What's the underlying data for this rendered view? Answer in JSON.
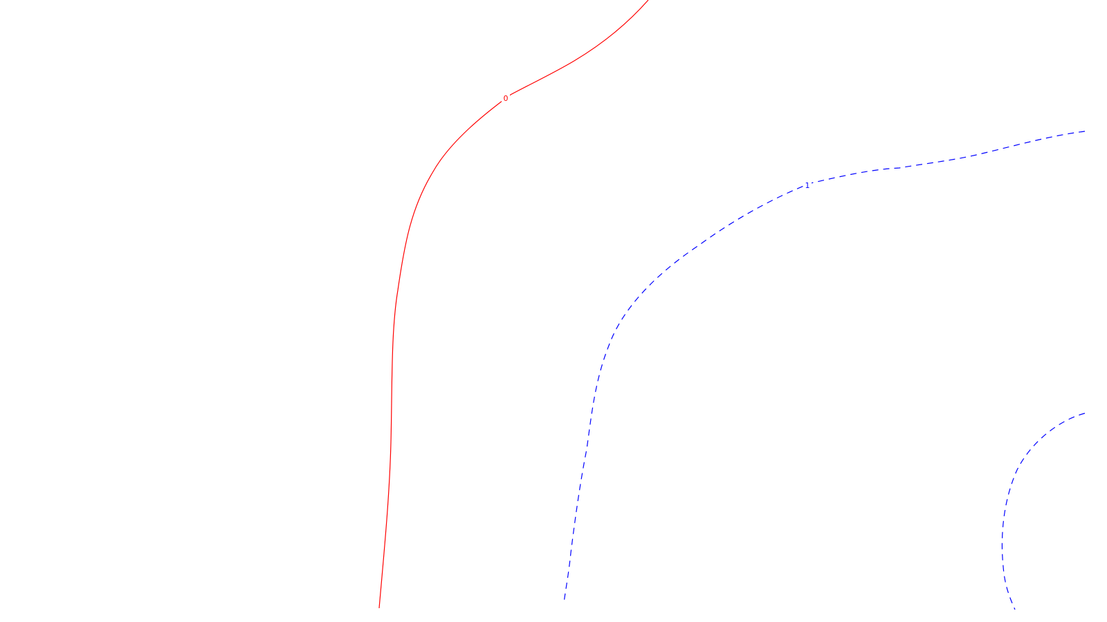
{
  "contours": [
    {
      "level_label": "0",
      "color": "#ff0000",
      "style": "solid"
    },
    {
      "level_label": "1",
      "color": "#0000ff",
      "style": "dashed"
    },
    {
      "level_label": "",
      "color": "#0000ff",
      "style": "dashed"
    }
  ]
}
